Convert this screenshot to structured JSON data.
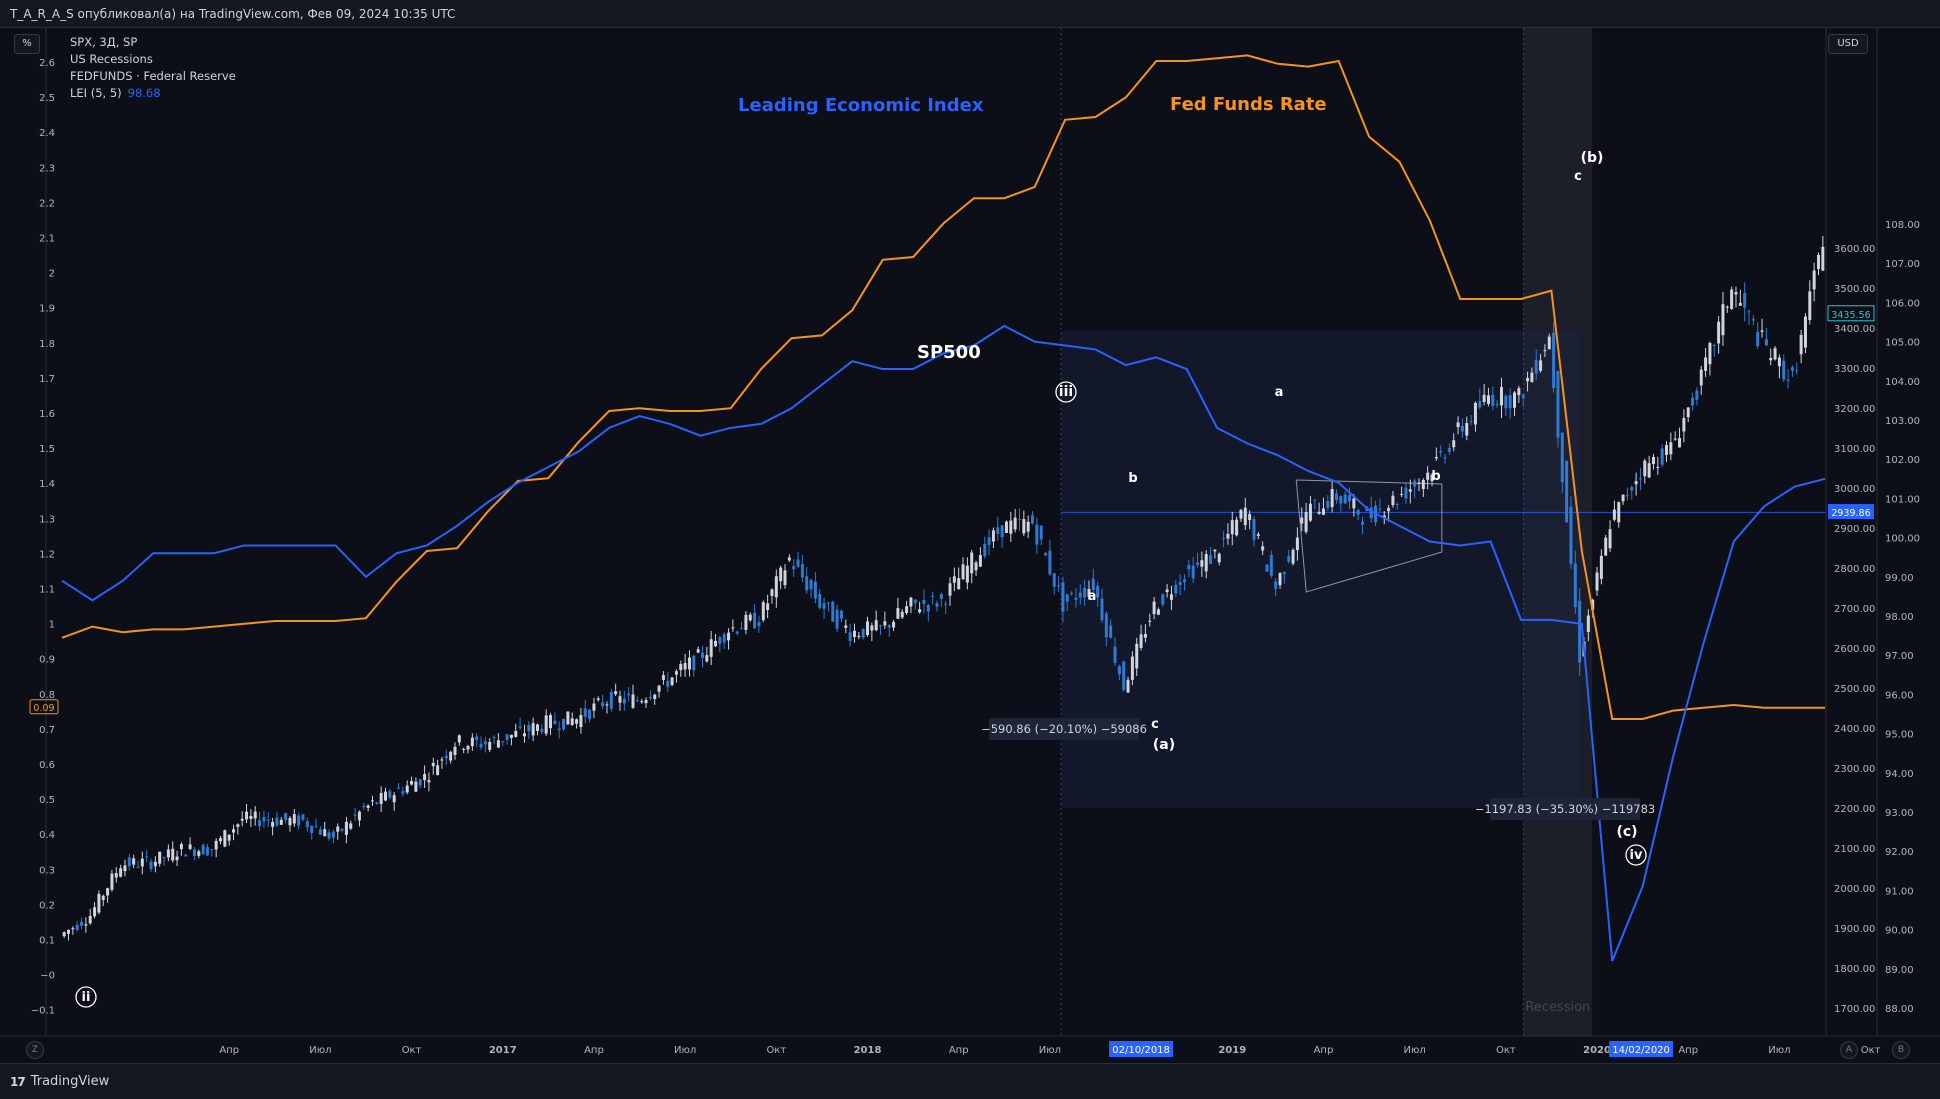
{
  "header": {
    "publisher_line": "T_A_R_A_S опубликовал(а) на TradingView.com, Фев 09, 2024 10:35 UTC"
  },
  "legend": {
    "symbol_line": "SPX, 3Д, SP",
    "recessions_line": "US Recessions",
    "fedfunds_line": "FEDFUNDS · Federal Reserve",
    "lei_line": "LEI (5, 5)",
    "lei_value": "98.68"
  },
  "buttons": {
    "percent": "%",
    "currency": "USD",
    "reset": "Z",
    "auto": "A",
    "log": "B"
  },
  "footer": {
    "logo_mark": "17",
    "logo_text": "TradingView"
  },
  "colors": {
    "background": "#0c0f17",
    "lei": "#2962ff",
    "fedfunds": "#f7931a",
    "candle_up": "#d1d4dc",
    "candle_down": "#2e7bd1",
    "recession": "#2a2e39",
    "annotation": "#ffffff"
  },
  "chart_data": {
    "type": "line",
    "title": "",
    "annotations": {
      "lei_title": "Leading Economic Index",
      "fed_title": "Fed Funds Rate",
      "sp_title": "SP500",
      "recession_label": "Recession",
      "measure_1": "−590.86 (−20.10%) −59086",
      "measure_2": "−1197.83 (−35.30%) −119783",
      "wave_labels": [
        "ii",
        "iii",
        "a",
        "b",
        "c",
        "(a)",
        "a",
        "b",
        "c",
        "(b)",
        "(c)",
        "iv"
      ]
    },
    "x_axis": {
      "ticks": [
        "Апр",
        "Июл",
        "Окт",
        "2017",
        "Апр",
        "Июл",
        "Окт",
        "2018",
        "Апр",
        "Июл",
        "02/10/2018",
        "2019",
        "Апр",
        "Июл",
        "Окт",
        "2020",
        "14/02/2020",
        "Апр",
        "Июл",
        "Окт"
      ],
      "highlighted": [
        "02/10/2018",
        "14/02/2020"
      ]
    },
    "left_axis": {
      "label": "%",
      "ticks": [
        "2.6",
        "2.5",
        "2.4",
        "2.3",
        "2.2",
        "2.1",
        "2",
        "1.9",
        "1.8",
        "1.7",
        "1.6",
        "1.5",
        "1.4",
        "1.3",
        "1.2",
        "1.1",
        "1",
        "0.9",
        "0.8",
        "0.7",
        "0.6",
        "0.5",
        "0.4",
        "0.3",
        "0.2",
        "0.1",
        "−0",
        "−0.1"
      ],
      "current_badge": "0.09"
    },
    "right_axis_price": {
      "ticks": [
        "3600.00",
        "3500.00",
        "3400.00",
        "3300.00",
        "3200.00",
        "3100.00",
        "3000.00",
        "2900.00",
        "2800.00",
        "2700.00",
        "2600.00",
        "2500.00",
        "2400.00",
        "2300.00",
        "2200.00",
        "2100.00",
        "2000.00",
        "1900.00",
        "1800.00",
        "1700.00"
      ],
      "last_price": "3435.56",
      "crosshair_price": "2939.86"
    },
    "right_axis_lei": {
      "ticks": [
        "108.00",
        "107.00",
        "106.00",
        "105.00",
        "104.00",
        "103.00",
        "102.00",
        "101.00",
        "100.00",
        "99.00",
        "98.00",
        "97.00",
        "96.00",
        "95.00",
        "94.00",
        "93.00",
        "92.00",
        "91.00",
        "90.00",
        "89.00",
        "88.00"
      ]
    },
    "series": [
      {
        "name": "FEDFUNDS · Federal Reserve",
        "x": [
          "2016-01",
          "2016-02",
          "2016-03",
          "2016-04",
          "2016-05",
          "2016-06",
          "2016-07",
          "2016-08",
          "2016-09",
          "2016-10",
          "2016-11",
          "2016-12",
          "2017-01",
          "2017-02",
          "2017-03",
          "2017-04",
          "2017-05",
          "2017-06",
          "2017-07",
          "2017-08",
          "2017-09",
          "2017-10",
          "2017-11",
          "2017-12",
          "2018-01",
          "2018-02",
          "2018-03",
          "2018-04",
          "2018-05",
          "2018-06",
          "2018-07",
          "2018-08",
          "2018-09",
          "2018-10",
          "2018-11",
          "2018-12",
          "2019-01",
          "2019-02",
          "2019-03",
          "2019-04",
          "2019-05",
          "2019-06",
          "2019-07",
          "2019-08",
          "2019-09",
          "2019-10",
          "2019-11",
          "2019-12",
          "2020-01",
          "2020-02",
          "2020-03",
          "2020-04",
          "2020-05",
          "2020-06",
          "2020-07",
          "2020-08",
          "2020-09",
          "2020-10",
          "2020-11"
        ],
        "values": [
          0.34,
          0.38,
          0.36,
          0.37,
          0.37,
          0.38,
          0.39,
          0.4,
          0.4,
          0.4,
          0.41,
          0.54,
          0.65,
          0.66,
          0.79,
          0.9,
          0.91,
          1.04,
          1.15,
          1.16,
          1.15,
          1.15,
          1.16,
          1.3,
          1.41,
          1.42,
          1.51,
          1.69,
          1.7,
          1.82,
          1.91,
          1.91,
          1.95,
          2.19,
          2.2,
          2.27,
          2.4,
          2.4,
          2.41,
          2.42,
          2.39,
          2.38,
          2.4,
          2.13,
          2.04,
          1.83,
          1.55,
          1.55,
          1.55,
          1.58,
          0.65,
          0.05,
          0.05,
          0.08,
          0.09,
          0.1,
          0.09,
          0.09,
          0.09
        ]
      },
      {
        "name": "LEI (5, 5)",
        "x": [
          "2016-01",
          "2016-02",
          "2016-03",
          "2016-04",
          "2016-05",
          "2016-06",
          "2016-07",
          "2016-08",
          "2016-09",
          "2016-10",
          "2016-11",
          "2016-12",
          "2017-01",
          "2017-02",
          "2017-03",
          "2017-04",
          "2017-05",
          "2017-06",
          "2017-07",
          "2017-08",
          "2017-09",
          "2017-10",
          "2017-11",
          "2017-12",
          "2018-01",
          "2018-02",
          "2018-03",
          "2018-04",
          "2018-05",
          "2018-06",
          "2018-07",
          "2018-08",
          "2018-09",
          "2018-10",
          "2018-11",
          "2018-12",
          "2019-01",
          "2019-02",
          "2019-03",
          "2019-04",
          "2019-05",
          "2019-06",
          "2019-07",
          "2019-08",
          "2019-09",
          "2019-10",
          "2019-11",
          "2019-12",
          "2020-01",
          "2020-02",
          "2020-03",
          "2020-04",
          "2020-05",
          "2020-06",
          "2020-07",
          "2020-08",
          "2020-09",
          "2020-10",
          "2020-11"
        ],
        "values": [
          98.9,
          98.4,
          98.9,
          99.6,
          99.6,
          99.6,
          99.8,
          99.8,
          99.8,
          99.8,
          99.0,
          99.6,
          99.8,
          100.3,
          100.9,
          101.4,
          101.8,
          102.2,
          102.8,
          103.1,
          102.9,
          102.6,
          102.8,
          102.9,
          103.3,
          103.9,
          104.5,
          104.3,
          104.3,
          104.7,
          104.9,
          105.4,
          105.0,
          104.9,
          104.8,
          104.4,
          104.6,
          104.3,
          102.8,
          102.4,
          102.1,
          101.7,
          101.4,
          100.7,
          100.3,
          99.9,
          99.8,
          99.9,
          97.9,
          97.9,
          97.8,
          89.2,
          91.1,
          94.4,
          97.3,
          99.9,
          100.8,
          101.3,
          101.5
        ]
      },
      {
        "name": "SPX, 3Д, SP",
        "x": [
          "2016-01",
          "2016-02",
          "2016-03",
          "2016-04",
          "2016-05",
          "2016-06",
          "2016-07",
          "2016-08",
          "2016-09",
          "2016-10",
          "2016-11",
          "2016-12",
          "2017-01",
          "2017-02",
          "2017-03",
          "2017-04",
          "2017-05",
          "2017-06",
          "2017-07",
          "2017-08",
          "2017-09",
          "2017-10",
          "2017-11",
          "2017-12",
          "2018-01",
          "2018-02",
          "2018-03",
          "2018-04",
          "2018-05",
          "2018-06",
          "2018-07",
          "2018-08",
          "2018-09",
          "2018-10",
          "2018-11",
          "2018-12",
          "2019-01",
          "2019-02",
          "2019-03",
          "2019-04",
          "2019-05",
          "2019-06",
          "2019-07",
          "2019-08",
          "2019-09",
          "2019-10",
          "2019-11",
          "2019-12",
          "2020-01",
          "2020-02",
          "2020-03",
          "2020-04",
          "2020-05",
          "2020-06",
          "2020-07",
          "2020-08",
          "2020-09",
          "2020-10",
          "2020-11"
        ],
        "values": [
          1880,
          1932,
          2059,
          2065,
          2096,
          2098,
          2173,
          2170,
          2168,
          2126,
          2198,
          2238,
          2278,
          2363,
          2362,
          2384,
          2411,
          2423,
          2470,
          2471,
          2519,
          2575,
          2647,
          2673,
          2823,
          2713,
          2640,
          2648,
          2705,
          2718,
          2816,
          2901,
          2913,
          2711,
          2760,
          2506,
          2704,
          2784,
          2834,
          2945,
          2752,
          2941,
          2980,
          2926,
          2976,
          3037,
          3140,
          3230,
          3225,
          3380,
          2584,
          2912,
          3044,
          3100,
          3271,
          3500,
          3363,
          3269,
          3621
        ]
      }
    ]
  }
}
